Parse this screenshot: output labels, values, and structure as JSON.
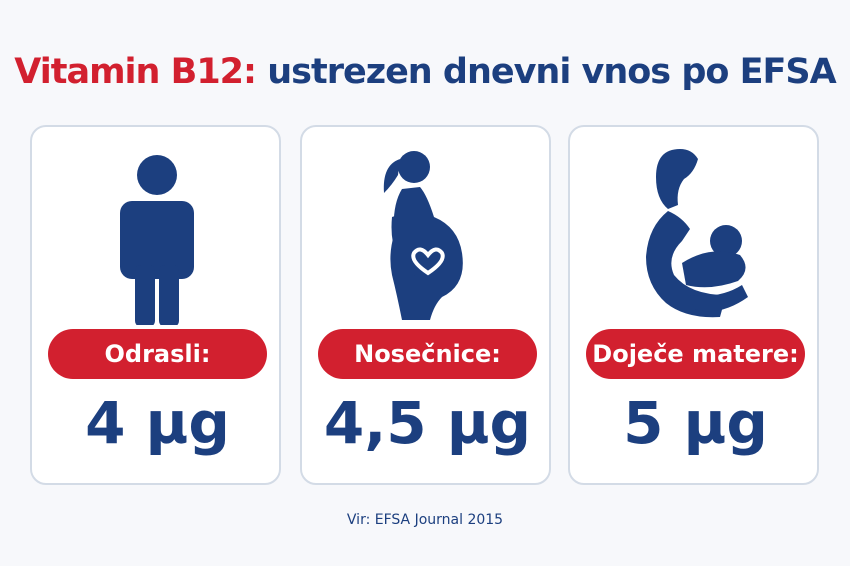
{
  "header": {
    "title_highlight": "Vitamin B12:",
    "title_rest": "ustrezen dnevni vnos po EFSA"
  },
  "cards": [
    {
      "label": "Odrasli:",
      "value": "4 µg"
    },
    {
      "label": "Nosečnice:",
      "value": "4,5 µg"
    },
    {
      "label": "Doječe matere:",
      "value": "5 µg"
    }
  ],
  "footer": {
    "source": "Vir: EFSA Journal 2015"
  }
}
